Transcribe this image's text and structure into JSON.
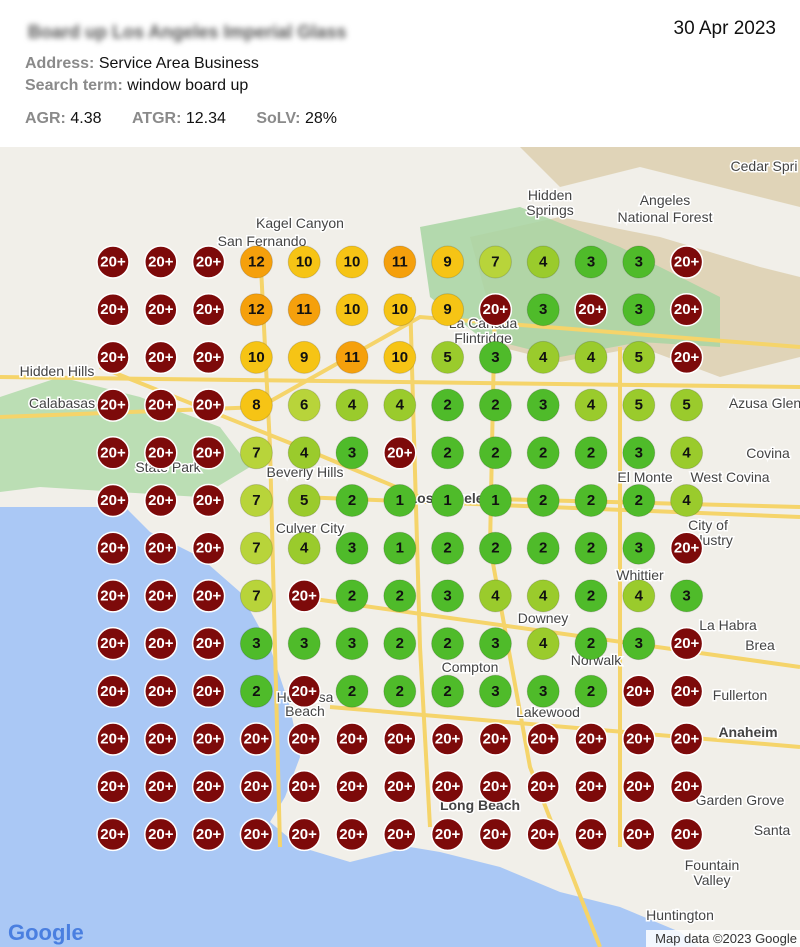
{
  "header": {
    "title": "Board up Los Angeles Imperial Glass",
    "date": "30 Apr 2023",
    "address_label": "Address:",
    "address": "Service Area Business",
    "search_label": "Search term:",
    "search": "window board up",
    "metrics": [
      {
        "label": "AGR:",
        "value": "4.38"
      },
      {
        "label": "ATGR:",
        "value": "12.34"
      },
      {
        "label": "SoLV:",
        "value": "28%"
      }
    ]
  },
  "map": {
    "places": [
      "Cedar Spri",
      "Hidden",
      "Springs",
      "Angeles",
      "National Forest",
      "Kagel Canyon",
      "San Fernando",
      "La Canada",
      "Flintridge",
      "Hidden Hills",
      "Calabasas",
      "Azusa Glen",
      "State Park",
      "Covina",
      "Beverly Hills",
      "El Monte",
      "West Covina",
      "Los Angeles",
      "City of",
      "Industry",
      "Culver City",
      "Whittier",
      "Downey",
      "La Habra",
      "Brea",
      "Compton",
      "Norwalk",
      "Fullerton",
      "Hermosa",
      "Beach",
      "Lakewood",
      "Anaheim",
      "Long Beach",
      "Garden Grove",
      "Santa",
      "Fountain",
      "Valley",
      "Huntington"
    ],
    "grid": [
      [
        "20+",
        "20+",
        "20+",
        "12",
        "10",
        "10",
        "11",
        "9",
        "7",
        "4",
        "3",
        "3",
        "20+"
      ],
      [
        "20+",
        "20+",
        "20+",
        "12",
        "11",
        "10",
        "10",
        "9",
        "20+",
        "3",
        "20+",
        "3",
        "20+"
      ],
      [
        "20+",
        "20+",
        "20+",
        "10",
        "9",
        "11",
        "10",
        "5",
        "3",
        "4",
        "4",
        "5",
        "20+"
      ],
      [
        "20+",
        "20+",
        "20+",
        "8",
        "6",
        "4",
        "4",
        "2",
        "2",
        "3",
        "4",
        "5",
        "5"
      ],
      [
        "20+",
        "20+",
        "20+",
        "7",
        "4",
        "3",
        "20+",
        "2",
        "2",
        "2",
        "2",
        "3",
        "4"
      ],
      [
        "20+",
        "20+",
        "20+",
        "7",
        "5",
        "2",
        "1",
        "1",
        "1",
        "2",
        "2",
        "2",
        "4"
      ],
      [
        "20+",
        "20+",
        "20+",
        "7",
        "4",
        "3",
        "1",
        "2",
        "2",
        "2",
        "2",
        "3",
        "20+"
      ],
      [
        "20+",
        "20+",
        "20+",
        "7",
        "20+",
        "2",
        "2",
        "3",
        "4",
        "4",
        "2",
        "4",
        "3"
      ],
      [
        "20+",
        "20+",
        "20+",
        "3",
        "3",
        "3",
        "2",
        "2",
        "3",
        "4",
        "2",
        "3",
        "20+"
      ],
      [
        "20+",
        "20+",
        "20+",
        "2",
        "20+",
        "2",
        "2",
        "2",
        "3",
        "3",
        "2",
        "20+",
        "20+"
      ],
      [
        "20+",
        "20+",
        "20+",
        "20+",
        "20+",
        "20+",
        "20+",
        "20+",
        "20+",
        "20+",
        "20+",
        "20+",
        "20+"
      ],
      [
        "20+",
        "20+",
        "20+",
        "20+",
        "20+",
        "20+",
        "20+",
        "20+",
        "20+",
        "20+",
        "20+",
        "20+",
        "20+"
      ],
      [
        "20+",
        "20+",
        "20+",
        "20+",
        "20+",
        "20+",
        "20+",
        "20+",
        "20+",
        "20+",
        "20+",
        "20+",
        "20+"
      ]
    ],
    "logo": "Google",
    "attribution": "Map data ©2023 Google"
  }
}
